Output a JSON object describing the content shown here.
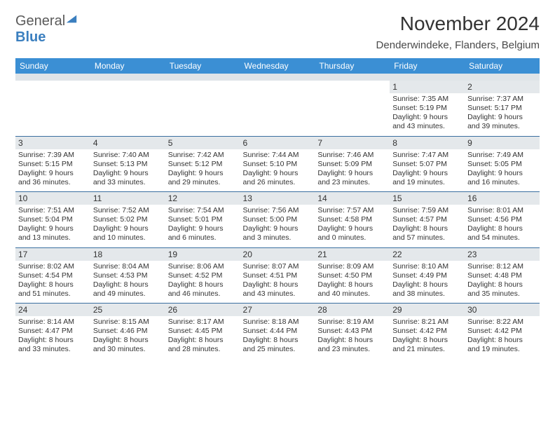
{
  "brand": {
    "general": "General",
    "blue": "Blue"
  },
  "title": "November 2024",
  "location": "Denderwindeke, Flanders, Belgium",
  "colors": {
    "header_bg": "#3b8fd4",
    "header_text": "#ffffff",
    "daynum_bg": "#e4e8eb",
    "row_border": "#3a6fa0",
    "spacer_bg": "#dfe4e8",
    "logo_accent": "#3b7fbf"
  },
  "weekdays": [
    "Sunday",
    "Monday",
    "Tuesday",
    "Wednesday",
    "Thursday",
    "Friday",
    "Saturday"
  ],
  "weeks": [
    [
      {
        "n": "",
        "d": ""
      },
      {
        "n": "",
        "d": ""
      },
      {
        "n": "",
        "d": ""
      },
      {
        "n": "",
        "d": ""
      },
      {
        "n": "",
        "d": ""
      },
      {
        "n": "1",
        "d": "Sunrise: 7:35 AM\nSunset: 5:19 PM\nDaylight: 9 hours and 43 minutes."
      },
      {
        "n": "2",
        "d": "Sunrise: 7:37 AM\nSunset: 5:17 PM\nDaylight: 9 hours and 39 minutes."
      }
    ],
    [
      {
        "n": "3",
        "d": "Sunrise: 7:39 AM\nSunset: 5:15 PM\nDaylight: 9 hours and 36 minutes."
      },
      {
        "n": "4",
        "d": "Sunrise: 7:40 AM\nSunset: 5:13 PM\nDaylight: 9 hours and 33 minutes."
      },
      {
        "n": "5",
        "d": "Sunrise: 7:42 AM\nSunset: 5:12 PM\nDaylight: 9 hours and 29 minutes."
      },
      {
        "n": "6",
        "d": "Sunrise: 7:44 AM\nSunset: 5:10 PM\nDaylight: 9 hours and 26 minutes."
      },
      {
        "n": "7",
        "d": "Sunrise: 7:46 AM\nSunset: 5:09 PM\nDaylight: 9 hours and 23 minutes."
      },
      {
        "n": "8",
        "d": "Sunrise: 7:47 AM\nSunset: 5:07 PM\nDaylight: 9 hours and 19 minutes."
      },
      {
        "n": "9",
        "d": "Sunrise: 7:49 AM\nSunset: 5:05 PM\nDaylight: 9 hours and 16 minutes."
      }
    ],
    [
      {
        "n": "10",
        "d": "Sunrise: 7:51 AM\nSunset: 5:04 PM\nDaylight: 9 hours and 13 minutes."
      },
      {
        "n": "11",
        "d": "Sunrise: 7:52 AM\nSunset: 5:02 PM\nDaylight: 9 hours and 10 minutes."
      },
      {
        "n": "12",
        "d": "Sunrise: 7:54 AM\nSunset: 5:01 PM\nDaylight: 9 hours and 6 minutes."
      },
      {
        "n": "13",
        "d": "Sunrise: 7:56 AM\nSunset: 5:00 PM\nDaylight: 9 hours and 3 minutes."
      },
      {
        "n": "14",
        "d": "Sunrise: 7:57 AM\nSunset: 4:58 PM\nDaylight: 9 hours and 0 minutes."
      },
      {
        "n": "15",
        "d": "Sunrise: 7:59 AM\nSunset: 4:57 PM\nDaylight: 8 hours and 57 minutes."
      },
      {
        "n": "16",
        "d": "Sunrise: 8:01 AM\nSunset: 4:56 PM\nDaylight: 8 hours and 54 minutes."
      }
    ],
    [
      {
        "n": "17",
        "d": "Sunrise: 8:02 AM\nSunset: 4:54 PM\nDaylight: 8 hours and 51 minutes."
      },
      {
        "n": "18",
        "d": "Sunrise: 8:04 AM\nSunset: 4:53 PM\nDaylight: 8 hours and 49 minutes."
      },
      {
        "n": "19",
        "d": "Sunrise: 8:06 AM\nSunset: 4:52 PM\nDaylight: 8 hours and 46 minutes."
      },
      {
        "n": "20",
        "d": "Sunrise: 8:07 AM\nSunset: 4:51 PM\nDaylight: 8 hours and 43 minutes."
      },
      {
        "n": "21",
        "d": "Sunrise: 8:09 AM\nSunset: 4:50 PM\nDaylight: 8 hours and 40 minutes."
      },
      {
        "n": "22",
        "d": "Sunrise: 8:10 AM\nSunset: 4:49 PM\nDaylight: 8 hours and 38 minutes."
      },
      {
        "n": "23",
        "d": "Sunrise: 8:12 AM\nSunset: 4:48 PM\nDaylight: 8 hours and 35 minutes."
      }
    ],
    [
      {
        "n": "24",
        "d": "Sunrise: 8:14 AM\nSunset: 4:47 PM\nDaylight: 8 hours and 33 minutes."
      },
      {
        "n": "25",
        "d": "Sunrise: 8:15 AM\nSunset: 4:46 PM\nDaylight: 8 hours and 30 minutes."
      },
      {
        "n": "26",
        "d": "Sunrise: 8:17 AM\nSunset: 4:45 PM\nDaylight: 8 hours and 28 minutes."
      },
      {
        "n": "27",
        "d": "Sunrise: 8:18 AM\nSunset: 4:44 PM\nDaylight: 8 hours and 25 minutes."
      },
      {
        "n": "28",
        "d": "Sunrise: 8:19 AM\nSunset: 4:43 PM\nDaylight: 8 hours and 23 minutes."
      },
      {
        "n": "29",
        "d": "Sunrise: 8:21 AM\nSunset: 4:42 PM\nDaylight: 8 hours and 21 minutes."
      },
      {
        "n": "30",
        "d": "Sunrise: 8:22 AM\nSunset: 4:42 PM\nDaylight: 8 hours and 19 minutes."
      }
    ]
  ]
}
